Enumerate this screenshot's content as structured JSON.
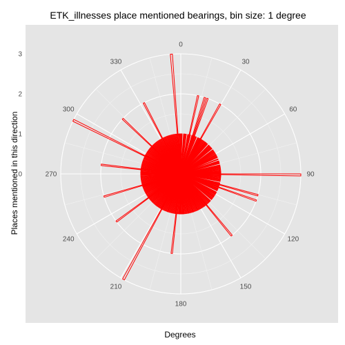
{
  "chart_data": {
    "type": "polar-bar",
    "title": "ETK_illnesses place mentioned bearings, bin size: 1 degree",
    "xlabel": "Degrees",
    "ylabel": "Places mentioned in this direction",
    "angle_ticks": [
      0,
      30,
      60,
      90,
      120,
      150,
      180,
      210,
      240,
      270,
      300,
      330
    ],
    "radial_ticks": [
      0,
      1,
      2,
      3
    ],
    "radial_range": [
      0,
      3
    ],
    "grid": true,
    "colors": {
      "bar_fill": "#ff0000",
      "bar_stroke": "#ff0000",
      "panel": "#e5e5e5",
      "grid": "#ffffff"
    },
    "bearings": [
      0,
      1,
      2,
      3,
      4,
      5,
      6,
      7,
      8,
      9,
      10,
      11,
      12,
      13,
      14,
      15,
      16,
      17,
      18,
      19,
      20,
      21,
      22,
      23,
      24,
      25,
      26,
      27,
      28,
      29,
      30,
      31,
      32,
      33,
      34,
      35,
      36,
      37,
      38,
      39,
      40,
      41,
      42,
      43,
      44,
      45,
      46,
      47,
      48,
      49,
      50,
      51,
      52,
      53,
      54,
      55,
      56,
      57,
      58,
      59,
      60,
      61,
      62,
      63,
      64,
      65,
      66,
      67,
      68,
      69,
      70,
      71,
      72,
      73,
      74,
      75,
      76,
      77,
      78,
      79,
      80,
      81,
      82,
      83,
      84,
      85,
      86,
      87,
      88,
      89,
      90,
      91,
      92,
      93,
      94,
      95,
      96,
      97,
      98,
      99,
      100,
      101,
      102,
      103,
      104,
      105,
      106,
      107,
      108,
      109,
      110,
      111,
      112,
      113,
      114,
      115,
      116,
      117,
      118,
      119,
      120,
      121,
      122,
      123,
      124,
      125,
      126,
      127,
      128,
      129,
      130,
      131,
      132,
      133,
      134,
      135,
      136,
      137,
      138,
      139,
      140,
      141,
      142,
      143,
      144,
      145,
      146,
      147,
      148,
      149,
      150,
      151,
      152,
      153,
      154,
      155,
      156,
      157,
      158,
      159,
      160,
      161,
      162,
      163,
      164,
      165,
      166,
      167,
      168,
      169,
      170,
      171,
      172,
      173,
      174,
      175,
      176,
      177,
      178,
      179,
      180,
      181,
      182,
      183,
      184,
      185,
      186,
      187,
      188,
      189,
      190,
      191,
      192,
      193,
      194,
      195,
      196,
      197,
      198,
      199,
      200,
      201,
      202,
      203,
      204,
      205,
      206,
      207,
      208,
      209,
      210,
      211,
      212,
      213,
      214,
      215,
      216,
      217,
      218,
      219,
      220,
      221,
      222,
      223,
      224,
      225,
      226,
      227,
      228,
      229,
      230,
      231,
      232,
      233,
      234,
      235,
      236,
      237,
      238,
      239,
      240,
      241,
      242,
      243,
      244,
      245,
      246,
      247,
      248,
      249,
      250,
      251,
      252,
      253,
      254,
      255,
      256,
      257,
      258,
      259,
      260,
      261,
      262,
      263,
      264,
      265,
      266,
      267,
      268,
      269,
      270,
      271,
      272,
      273,
      274,
      275,
      276,
      277,
      278,
      279,
      280,
      281,
      282,
      283,
      284,
      285,
      286,
      287,
      288,
      289,
      290,
      291,
      292,
      293,
      294,
      295,
      296,
      297,
      298,
      299,
      300,
      301,
      302,
      303,
      304,
      305,
      306,
      307,
      308,
      309,
      310,
      311,
      312,
      313,
      314,
      315,
      316,
      317,
      318,
      319,
      320,
      321,
      322,
      323,
      324,
      325,
      326,
      327,
      328,
      329,
      330,
      331,
      332,
      333,
      334,
      335,
      336,
      337,
      338,
      339,
      340,
      341,
      342,
      343,
      344,
      345,
      346,
      347,
      348,
      349,
      350,
      351,
      352,
      353,
      354,
      355,
      356,
      357,
      358,
      359
    ],
    "values": [
      1,
      1,
      0,
      0,
      1,
      1,
      0,
      1,
      0,
      0,
      1,
      0,
      2,
      1,
      0,
      0,
      1,
      2,
      1,
      2,
      1,
      0,
      1,
      0,
      0,
      1,
      0,
      1,
      1,
      2,
      1,
      1,
      0,
      1,
      0,
      1,
      0,
      1,
      1,
      1,
      0,
      1,
      0,
      0,
      1,
      1,
      0,
      1,
      0,
      1,
      1,
      0,
      0,
      1,
      0,
      1,
      0,
      1,
      0,
      1,
      0,
      1,
      1,
      0,
      1,
      1,
      0,
      0,
      1,
      0,
      0,
      1,
      1,
      0,
      1,
      0,
      0,
      1,
      0,
      1,
      1,
      0,
      1,
      0,
      1,
      0,
      1,
      1,
      1,
      0,
      3,
      0,
      1,
      1,
      0,
      1,
      0,
      1,
      1,
      0,
      1,
      0,
      0,
      1,
      1,
      2,
      1,
      0,
      1,
      2,
      0,
      1,
      1,
      0,
      1,
      0,
      0,
      1,
      0,
      1,
      1,
      0,
      1,
      0,
      1,
      1,
      0,
      1,
      0,
      1,
      0,
      0,
      1,
      1,
      0,
      1,
      0,
      1,
      0,
      1,
      2,
      1,
      0,
      1,
      1,
      0,
      1,
      0,
      1,
      0,
      1,
      0,
      1,
      0,
      1,
      1,
      0,
      1,
      0,
      1,
      0,
      1,
      1,
      0,
      1,
      0,
      1,
      0,
      1,
      1,
      0,
      1,
      0,
      1,
      0,
      1,
      1,
      1,
      0,
      1,
      0,
      1,
      1,
      0,
      1,
      0,
      2,
      1,
      1,
      0,
      1,
      0,
      1,
      0,
      1,
      0,
      1,
      0,
      1,
      1,
      0,
      1,
      0,
      1,
      0,
      1,
      0,
      1,
      3,
      1,
      1,
      0,
      1,
      0,
      1,
      0,
      1,
      0,
      1,
      0,
      1,
      0,
      1,
      0,
      1,
      0,
      1,
      0,
      1,
      0,
      1,
      0,
      1,
      2,
      1,
      0,
      1,
      0,
      1,
      0,
      1,
      0,
      1,
      0,
      1,
      0,
      1,
      0,
      1,
      0,
      1,
      1,
      1,
      2,
      1,
      0,
      1,
      0,
      1,
      0,
      1,
      0,
      1,
      0,
      1,
      0,
      1,
      0,
      1,
      0,
      1,
      1,
      1,
      0,
      1,
      0,
      2,
      1,
      1,
      0,
      1,
      0,
      1,
      0,
      1,
      0,
      1,
      0,
      1,
      0,
      1,
      0,
      1,
      0,
      1,
      0,
      3,
      1,
      1,
      0,
      1,
      0,
      1,
      0,
      1,
      0,
      1,
      0,
      1,
      0,
      1,
      0,
      1,
      2,
      1,
      0,
      1,
      0,
      1,
      0,
      1,
      0,
      1,
      0,
      1,
      0,
      1,
      0,
      1,
      0,
      1,
      0,
      2,
      1,
      0,
      1,
      0,
      1,
      0,
      1,
      0,
      1,
      0,
      1,
      0,
      1,
      0,
      1,
      0,
      1,
      0,
      1,
      0,
      1,
      0,
      3,
      0,
      1,
      0,
      1,
      0,
      1,
      0,
      1,
      1,
      1,
      1
    ]
  }
}
